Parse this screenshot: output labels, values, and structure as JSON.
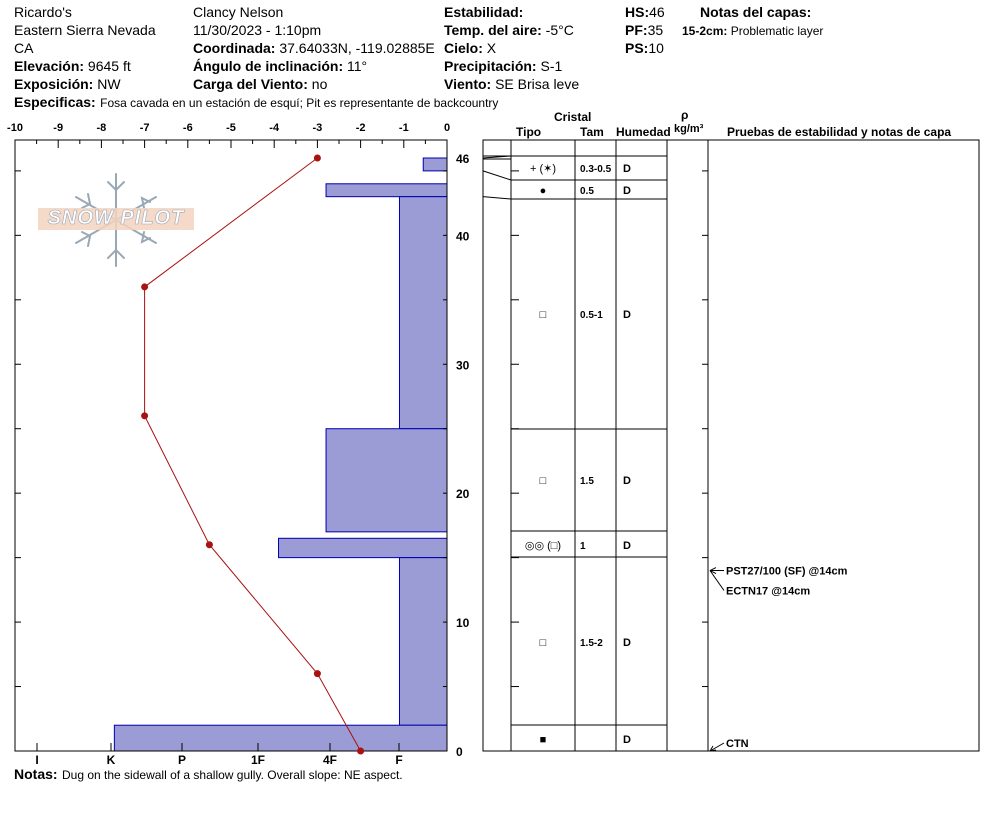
{
  "header": {
    "location": [
      "Ricardo's",
      "Eastern Sierra Nevada",
      "CA"
    ],
    "elevation_label": "Elevación:",
    "elevation_value": "9645 ft",
    "aspect_label": "Exposición:",
    "aspect_value": "NW",
    "observer": "Clancy Nelson",
    "datetime": "11/30/2023 - 1:10pm",
    "coord_label": "Coordinada:",
    "coord_value": "37.64033N, -119.02885E",
    "slope_label": "Ángulo de inclinación:",
    "slope_value": "11°",
    "wind_load_label": "Carga del Viento:",
    "wind_load_value": "no",
    "stability_label": "Estabilidad:",
    "stability_value": "",
    "air_temp_label": "Temp. del aire:",
    "air_temp_value": "-5°C",
    "sky_label": "Cielo:",
    "sky_value": "X",
    "precip_label": "Precipitación:",
    "precip_value": "S-1",
    "wind_label": "Viento:",
    "wind_value": "SE  Brisa leve",
    "hs_label": "HS:",
    "hs_value": "46",
    "pf_label": "PF:",
    "pf_value": "35",
    "ps_label": "PS:",
    "ps_value": "10",
    "layer_notes_title": "Notas del capas:",
    "layer_note_key": "15-2cm:",
    "layer_note_text": "Problematic layer",
    "specifics_label": "Especificas:",
    "specifics_text": "Fosa cavada en un estación de esquí; Pit es representante de backcountry"
  },
  "logo_text": "SNOW PILOT",
  "footer": {
    "notes_label": "Notas:",
    "notes_text": "Dug on the sidewall of a shallow gully. Overall slope: NE aspect."
  },
  "table_headers": {
    "crystal": "Cristal",
    "type": "Tipo",
    "size": "Tam",
    "moisture": "Humedad",
    "density_symbol": "ρ",
    "density_unit": "kg/m³",
    "tests": "Pruebas de estabilidad y notas de capa"
  },
  "layers": [
    {
      "top": 46,
      "bottom": 45,
      "type": "",
      "size": "",
      "moisture": ""
    },
    {
      "top": 45,
      "bottom": 43,
      "type": "+ (✶)",
      "size": "0.3-0.5",
      "moisture": "D"
    },
    {
      "top": 43,
      "bottom": 42,
      "type": "●",
      "size": "0.5",
      "moisture": "D"
    },
    {
      "top": 42,
      "bottom": 25,
      "type": "□",
      "size": "0.5-1",
      "moisture": "D"
    },
    {
      "top": 25,
      "bottom": 17,
      "type": "□",
      "size": "1.5",
      "moisture": "D"
    },
    {
      "top": 17,
      "bottom": 15,
      "type": "◎◎ (□)",
      "size": "1",
      "moisture": "D"
    },
    {
      "top": 15,
      "bottom": 2,
      "type": "□",
      "size": "1.5-2",
      "moisture": "D"
    },
    {
      "top": 2,
      "bottom": 0,
      "type": "■",
      "size": "",
      "moisture": "D"
    }
  ],
  "tests": [
    {
      "text": "PST27/100 (SF) @14cm",
      "depth": 14
    },
    {
      "text": "ECTN17 @14cm",
      "depth": 14
    },
    {
      "text": "CTN",
      "depth": 0
    }
  ],
  "chart_data": {
    "type": "line",
    "temperature_axis": {
      "ticks": [
        "-10",
        "-9",
        "-8",
        "-7",
        "-6",
        "-5",
        "-4",
        "-3",
        "-2",
        "-1",
        "0"
      ],
      "range": [
        -10,
        0
      ]
    },
    "height_axis": {
      "ticks": [
        "0",
        "10",
        "20",
        "30",
        "40",
        "46"
      ],
      "range": [
        0,
        46
      ]
    },
    "hardness_axis": {
      "labels": [
        "I",
        "K",
        "P",
        "1F",
        "4F",
        "F"
      ]
    },
    "temperature_profile": [
      {
        "height": 46,
        "temp": -3.0
      },
      {
        "height": 36,
        "temp": -7.0
      },
      {
        "height": 26,
        "temp": -7.0
      },
      {
        "height": 16,
        "temp": -5.5
      },
      {
        "height": 6,
        "temp": -3.0
      },
      {
        "height": 0,
        "temp": -2.0
      }
    ],
    "hardness_profile": [
      {
        "top": 46,
        "bottom": 45,
        "hardness_units": 0.55
      },
      {
        "top": 44,
        "bottom": 43,
        "hardness_units": 2.8
      },
      {
        "top": 43,
        "bottom": 25,
        "hardness_units": 1.1
      },
      {
        "top": 25,
        "bottom": 17,
        "hardness_units": 2.8
      },
      {
        "top": 16.5,
        "bottom": 15,
        "hardness_units": 3.9
      },
      {
        "top": 15,
        "bottom": 2,
        "hardness_units": 1.1
      },
      {
        "top": 2,
        "bottom": 0,
        "hardness_units": 7.7
      }
    ],
    "colors": {
      "hardness_fill": "#9b9bd6",
      "hardness_stroke": "#0000b0",
      "temperature": "#aa1111"
    }
  }
}
